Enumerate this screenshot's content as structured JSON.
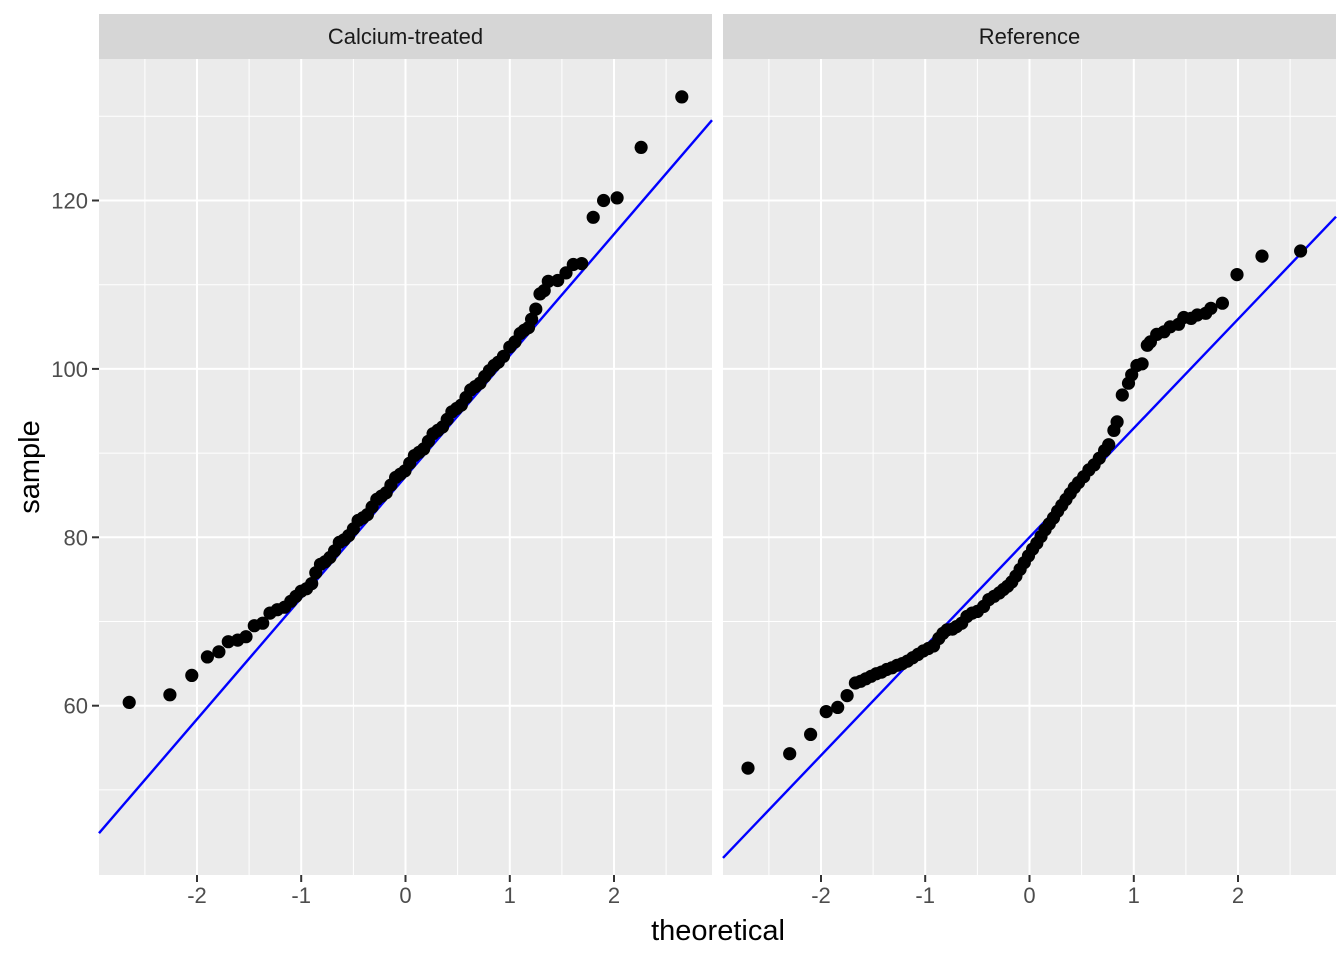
{
  "colors": {
    "background": "#ffffff",
    "panel_bg": "#EBEBEB",
    "strip_bg": "#D6D6D6",
    "grid": "#FFFFFF",
    "point": "#000000",
    "qq_line": "#0000FF",
    "tick_mark": "#333333",
    "axis_text": "#4D4D4D",
    "strip_text": "#1A1A1A",
    "axis_title_text": "#000000"
  },
  "chart_data": {
    "type": "scatter",
    "subtype": "qq-plot-faceted",
    "title": "",
    "xlabel": "theoretical",
    "ylabel": "sample",
    "xlim": [
      -2.94,
      2.94
    ],
    "ylim": [
      39.9,
      136.8
    ],
    "x_tick_values": [
      -2,
      -1,
      0,
      1,
      2
    ],
    "x_tick_labels": [
      "-2",
      "-1",
      "0",
      "1",
      "2"
    ],
    "x_minor_values": [
      -2.5,
      -1.5,
      -0.5,
      0.5,
      1.5,
      2.5
    ],
    "y_tick_values": [
      60,
      80,
      100,
      120
    ],
    "y_tick_labels": [
      "60",
      "80",
      "100",
      "120"
    ],
    "y_minor_values": [
      50,
      70,
      90,
      110,
      130
    ],
    "grid": "white major and minor gridlines on grey panels",
    "legend": "none",
    "facets": [
      {
        "label": "Calcium-treated",
        "line": {
          "intercept": 87.2,
          "slope": 14.4
        },
        "points": [
          [
            -2.65,
            60.4
          ],
          [
            -2.26,
            61.3
          ],
          [
            -2.05,
            63.6
          ],
          [
            -1.9,
            65.8
          ],
          [
            -1.79,
            66.4
          ],
          [
            -1.7,
            67.6
          ],
          [
            -1.61,
            67.8
          ],
          [
            -1.53,
            68.2
          ],
          [
            -1.45,
            69.5
          ],
          [
            -1.37,
            69.8
          ],
          [
            -1.3,
            71.0
          ],
          [
            -1.23,
            71.4
          ],
          [
            -1.16,
            71.7
          ],
          [
            -1.1,
            72.4
          ],
          [
            -1.05,
            73.0
          ],
          [
            -1.0,
            73.6
          ],
          [
            -0.95,
            73.9
          ],
          [
            -0.9,
            74.5
          ],
          [
            -0.86,
            75.8
          ],
          [
            -0.815,
            76.8
          ],
          [
            -0.77,
            77.1
          ],
          [
            -0.725,
            77.6
          ],
          [
            -0.68,
            78.4
          ],
          [
            -0.635,
            79.4
          ],
          [
            -0.59,
            79.7
          ],
          [
            -0.545,
            80.2
          ],
          [
            -0.5,
            81.0
          ],
          [
            -0.455,
            82.0
          ],
          [
            -0.41,
            82.3
          ],
          [
            -0.365,
            82.7
          ],
          [
            -0.32,
            83.6
          ],
          [
            -0.275,
            84.5
          ],
          [
            -0.23,
            84.9
          ],
          [
            -0.185,
            85.3
          ],
          [
            -0.14,
            86.2
          ],
          [
            -0.095,
            87.1
          ],
          [
            -0.05,
            87.5
          ],
          [
            -0.005,
            87.9
          ],
          [
            0.04,
            88.8
          ],
          [
            0.085,
            89.7
          ],
          [
            0.13,
            90.1
          ],
          [
            0.175,
            90.5
          ],
          [
            0.22,
            91.4
          ],
          [
            0.265,
            92.3
          ],
          [
            0.31,
            92.7
          ],
          [
            0.355,
            93.1
          ],
          [
            0.4,
            94.0
          ],
          [
            0.445,
            94.9
          ],
          [
            0.49,
            95.3
          ],
          [
            0.535,
            95.7
          ],
          [
            0.58,
            96.6
          ],
          [
            0.625,
            97.5
          ],
          [
            0.67,
            97.9
          ],
          [
            0.715,
            98.3
          ],
          [
            0.76,
            99.1
          ],
          [
            0.805,
            99.8
          ],
          [
            0.85,
            100.4
          ],
          [
            0.89,
            100.8
          ],
          [
            0.94,
            101.5
          ],
          [
            1.0,
            102.6
          ],
          [
            1.05,
            103.2
          ],
          [
            1.1,
            104.2
          ],
          [
            1.14,
            104.6
          ],
          [
            1.18,
            104.9
          ],
          [
            1.21,
            105.9
          ],
          [
            1.25,
            107.1
          ],
          [
            1.29,
            108.9
          ],
          [
            1.33,
            109.3
          ],
          [
            1.37,
            110.4
          ],
          [
            1.46,
            110.5
          ],
          [
            1.54,
            111.4
          ],
          [
            1.61,
            112.4
          ],
          [
            1.69,
            112.5
          ],
          [
            1.8,
            118.0
          ],
          [
            1.9,
            120.0
          ],
          [
            2.03,
            120.3
          ],
          [
            2.26,
            126.3
          ],
          [
            2.65,
            132.3
          ]
        ]
      },
      {
        "label": "Reference",
        "line": {
          "intercept": 80.0,
          "slope": 12.95
        },
        "points": [
          [
            -2.7,
            52.6
          ],
          [
            -2.3,
            54.3
          ],
          [
            -2.1,
            56.6
          ],
          [
            -1.95,
            59.3
          ],
          [
            -1.84,
            59.8
          ],
          [
            -1.75,
            61.2
          ],
          [
            -1.67,
            62.7
          ],
          [
            -1.62,
            62.9
          ],
          [
            -1.57,
            63.2
          ],
          [
            -1.52,
            63.5
          ],
          [
            -1.47,
            63.8
          ],
          [
            -1.42,
            64.0
          ],
          [
            -1.37,
            64.3
          ],
          [
            -1.32,
            64.5
          ],
          [
            -1.27,
            64.8
          ],
          [
            -1.22,
            65.0
          ],
          [
            -1.17,
            65.3
          ],
          [
            -1.12,
            65.7
          ],
          [
            -1.07,
            66.1
          ],
          [
            -1.02,
            66.5
          ],
          [
            -0.97,
            66.8
          ],
          [
            -0.92,
            67.1
          ],
          [
            -0.87,
            68.0
          ],
          [
            -0.83,
            68.6
          ],
          [
            -0.79,
            69.0
          ],
          [
            -0.74,
            69.1
          ],
          [
            -0.7,
            69.4
          ],
          [
            -0.65,
            69.8
          ],
          [
            -0.6,
            70.6
          ],
          [
            -0.55,
            71.0
          ],
          [
            -0.5,
            71.2
          ],
          [
            -0.44,
            71.8
          ],
          [
            -0.39,
            72.6
          ],
          [
            -0.34,
            73.0
          ],
          [
            -0.29,
            73.4
          ],
          [
            -0.25,
            73.8
          ],
          [
            -0.21,
            74.2
          ],
          [
            -0.17,
            74.7
          ],
          [
            -0.13,
            75.4
          ],
          [
            -0.09,
            76.2
          ],
          [
            -0.05,
            77.0
          ],
          [
            -0.01,
            77.8
          ],
          [
            0.03,
            78.6
          ],
          [
            0.07,
            79.3
          ],
          [
            0.11,
            80.1
          ],
          [
            0.15,
            80.9
          ],
          [
            0.19,
            81.6
          ],
          [
            0.23,
            82.3
          ],
          [
            0.27,
            83.1
          ],
          [
            0.31,
            83.8
          ],
          [
            0.35,
            84.5
          ],
          [
            0.39,
            85.2
          ],
          [
            0.43,
            85.9
          ],
          [
            0.47,
            86.5
          ],
          [
            0.52,
            87.2
          ],
          [
            0.57,
            88.0
          ],
          [
            0.62,
            88.6
          ],
          [
            0.67,
            89.4
          ],
          [
            0.72,
            90.3
          ],
          [
            0.76,
            91.0
          ],
          [
            0.81,
            92.7
          ],
          [
            0.84,
            93.7
          ],
          [
            0.89,
            96.9
          ],
          [
            0.95,
            98.3
          ],
          [
            0.98,
            99.3
          ],
          [
            1.03,
            100.4
          ],
          [
            1.08,
            100.6
          ],
          [
            1.13,
            102.8
          ],
          [
            1.16,
            103.2
          ],
          [
            1.22,
            104.1
          ],
          [
            1.29,
            104.4
          ],
          [
            1.35,
            105.0
          ],
          [
            1.43,
            105.3
          ],
          [
            1.48,
            106.1
          ],
          [
            1.55,
            106.0
          ],
          [
            1.61,
            106.4
          ],
          [
            1.69,
            106.6
          ],
          [
            1.74,
            107.2
          ],
          [
            1.85,
            107.8
          ],
          [
            1.99,
            111.2
          ],
          [
            2.23,
            113.4
          ],
          [
            2.6,
            114.0
          ]
        ]
      }
    ]
  }
}
